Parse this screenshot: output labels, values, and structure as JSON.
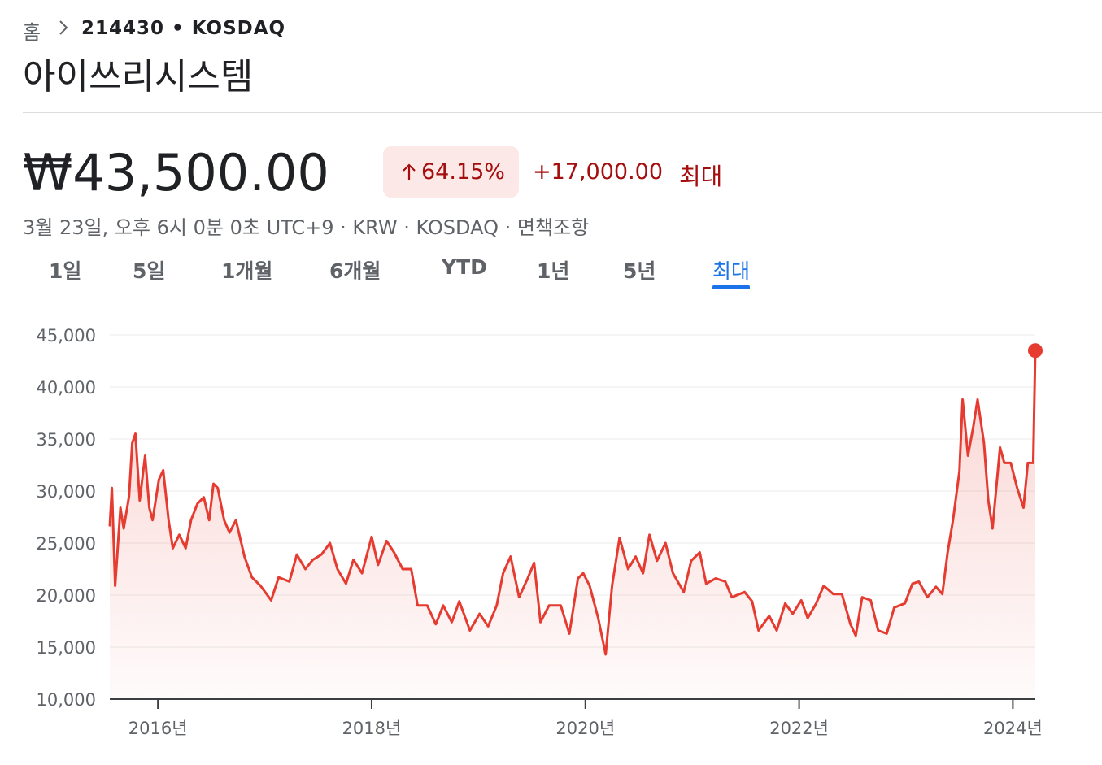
{
  "header": {
    "breadcrumb_home": "홈",
    "breadcrumb_ticker": "214430 • KOSDAQ",
    "company": "아이쓰리시스템"
  },
  "quote": {
    "price": "₩43,500.00",
    "change_percent": "64.15%",
    "change_amount": "+17,000.00",
    "period": "최대",
    "info": "3월 23일, 오후 6시 0분 0초 UTC+9 · KRW · KOSDAQ · 면책조항"
  },
  "tabs": {
    "items": [
      "1일",
      "5일",
      "1개월",
      "6개월",
      "YTD",
      "1년",
      "5년",
      "최대"
    ],
    "selected": 7
  },
  "chart_data": {
    "type": "line",
    "color": "#e53b30",
    "grid": true,
    "xlim": [
      2015.55,
      2024.21
    ],
    "xticks": [
      {
        "value": 2016,
        "label": "2016년"
      },
      {
        "value": 2018,
        "label": "2018년"
      },
      {
        "value": 2020,
        "label": "2020년"
      },
      {
        "value": 2022,
        "label": "2022년"
      },
      {
        "value": 2024,
        "label": "2024년"
      }
    ],
    "ylim": [
      10000,
      45000
    ],
    "yticks": [
      {
        "value": 10000,
        "label": "10,000"
      },
      {
        "value": 15000,
        "label": "15,000"
      },
      {
        "value": 20000,
        "label": "20,000"
      },
      {
        "value": 25000,
        "label": "25,000"
      },
      {
        "value": 30000,
        "label": "30,000"
      },
      {
        "value": 35000,
        "label": "35,000"
      },
      {
        "value": 40000,
        "label": "40,000"
      },
      {
        "value": 45000,
        "label": "45,000"
      }
    ],
    "x": [
      2015.55,
      2015.57,
      2015.6,
      2015.65,
      2015.68,
      2015.73,
      2015.76,
      2015.79,
      2015.83,
      2015.88,
      2015.92,
      2015.95,
      2016.01,
      2016.05,
      2016.1,
      2016.14,
      2016.2,
      2016.26,
      2016.31,
      2016.37,
      2016.43,
      2016.48,
      2016.52,
      2016.56,
      2016.62,
      2016.67,
      2016.73,
      2016.81,
      2016.88,
      2016.96,
      2017.06,
      2017.13,
      2017.23,
      2017.3,
      2017.38,
      2017.45,
      2017.53,
      2017.61,
      2017.68,
      2017.76,
      2017.83,
      2017.91,
      2018.0,
      2018.06,
      2018.14,
      2018.21,
      2018.29,
      2018.37,
      2018.43,
      2018.52,
      2018.6,
      2018.67,
      2018.75,
      2018.82,
      2018.92,
      2019.01,
      2019.09,
      2019.17,
      2019.23,
      2019.3,
      2019.38,
      2019.46,
      2019.52,
      2019.58,
      2019.66,
      2019.77,
      2019.85,
      2019.93,
      2019.98,
      2020.04,
      2020.12,
      2020.19,
      2020.25,
      2020.32,
      2020.4,
      2020.47,
      2020.54,
      2020.6,
      2020.67,
      2020.75,
      2020.82,
      2020.92,
      2020.99,
      2021.07,
      2021.13,
      2021.22,
      2021.31,
      2021.37,
      2021.49,
      2021.56,
      2021.62,
      2021.72,
      2021.79,
      2021.87,
      2021.94,
      2022.02,
      2022.08,
      2022.16,
      2022.23,
      2022.32,
      2022.4,
      2022.48,
      2022.53,
      2022.59,
      2022.67,
      2022.74,
      2022.82,
      2022.89,
      2022.99,
      2023.06,
      2023.12,
      2023.2,
      2023.28,
      2023.34,
      2023.39,
      2023.44,
      2023.5,
      2023.53,
      2023.58,
      2023.63,
      2023.67,
      2023.73,
      2023.77,
      2023.81,
      2023.88,
      2023.92,
      2023.98,
      2024.04,
      2024.1,
      2024.14,
      2024.19,
      2024.21
    ],
    "values": [
      26600,
      30300,
      20900,
      28400,
      26400,
      29500,
      34600,
      35500,
      29100,
      33400,
      28400,
      27200,
      31100,
      32000,
      27200,
      24500,
      25800,
      24500,
      27200,
      28800,
      29400,
      27200,
      30700,
      30300,
      27200,
      26000,
      27200,
      23700,
      21700,
      20900,
      19500,
      21700,
      21300,
      23900,
      22500,
      23400,
      23900,
      25000,
      22500,
      21100,
      23400,
      22100,
      25600,
      22900,
      25200,
      24100,
      22500,
      22500,
      19000,
      19000,
      17200,
      19000,
      17400,
      19400,
      16600,
      18200,
      17000,
      19000,
      22100,
      23700,
      19800,
      21600,
      23100,
      17400,
      19000,
      19000,
      16300,
      21600,
      22100,
      20900,
      17800,
      14300,
      20900,
      25500,
      22500,
      23700,
      22100,
      25800,
      23300,
      25000,
      22100,
      20300,
      23300,
      24100,
      21100,
      21600,
      21300,
      19800,
      20300,
      19400,
      16600,
      18000,
      16600,
      19200,
      18200,
      19500,
      17800,
      19200,
      20900,
      20100,
      20100,
      17200,
      16100,
      19800,
      19500,
      16600,
      16300,
      18800,
      19200,
      21100,
      21300,
      19800,
      20800,
      20100,
      24100,
      27200,
      31900,
      38800,
      33400,
      36200,
      38800,
      34600,
      29100,
      26400,
      34200,
      32700,
      32700,
      30300,
      28400,
      32700,
      32700,
      43500
    ]
  }
}
